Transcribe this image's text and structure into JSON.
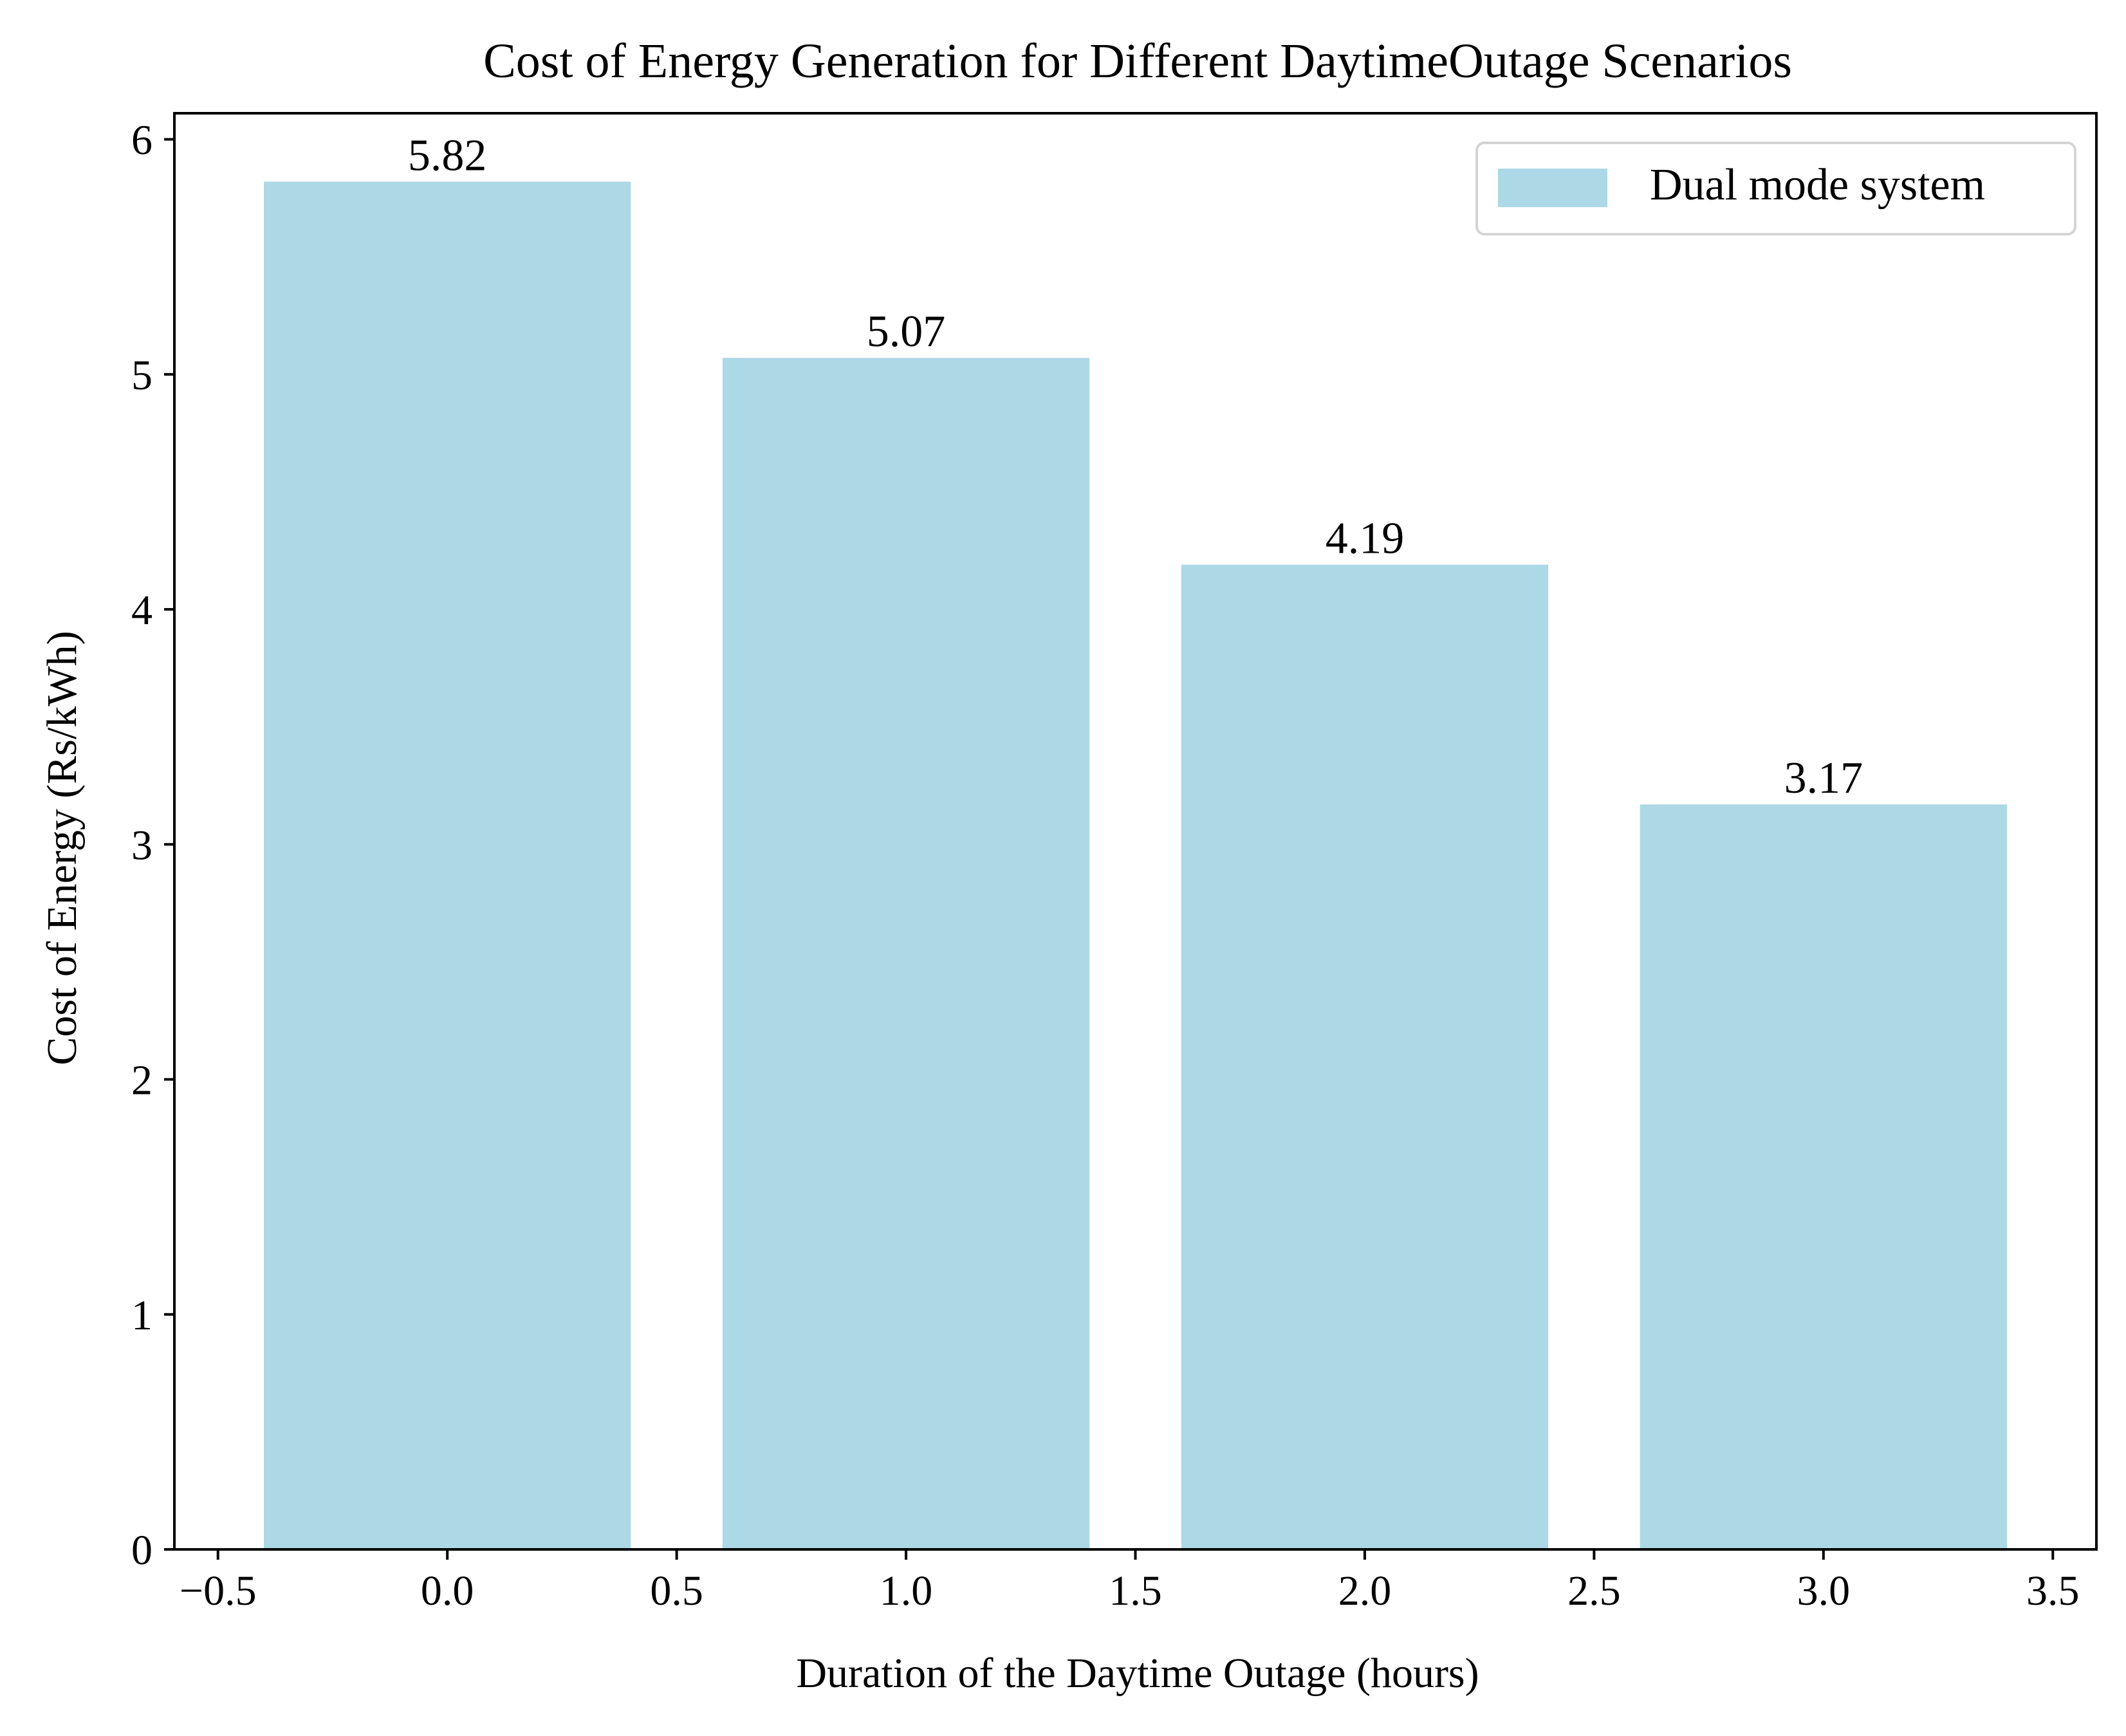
{
  "chart_data": {
    "type": "bar",
    "title": "Cost of Energy Generation for Different DaytimeOutage Scenarios",
    "xlabel": "Duration of the Daytime Outage (hours)",
    "ylabel": "Cost of Energy (Rs/kWh)",
    "x": [
      0,
      1,
      2,
      3
    ],
    "values": [
      5.82,
      5.07,
      4.19,
      3.17
    ],
    "value_labels": [
      "5.82",
      "5.07",
      "4.19",
      "3.17"
    ],
    "bar_width": 0.8,
    "xlim": [
      -0.595,
      3.595
    ],
    "ylim": [
      0,
      6.111
    ],
    "xticks": [
      -0.5,
      0.0,
      0.5,
      1.0,
      1.5,
      2.0,
      2.5,
      3.0,
      3.5
    ],
    "xtick_labels": [
      "−0.5",
      "0.0",
      "0.5",
      "1.0",
      "1.5",
      "2.0",
      "2.5",
      "3.0",
      "3.5"
    ],
    "yticks": [
      0,
      1,
      2,
      3,
      4,
      5,
      6
    ],
    "ytick_labels": [
      "0",
      "1",
      "2",
      "3",
      "4",
      "5",
      "6"
    ],
    "series": [
      {
        "name": "Dual mode system",
        "color": "#add8e6",
        "values": [
          5.82,
          5.07,
          4.19,
          3.17
        ]
      }
    ],
    "legend": {
      "position": "top-right"
    },
    "grid": false
  }
}
